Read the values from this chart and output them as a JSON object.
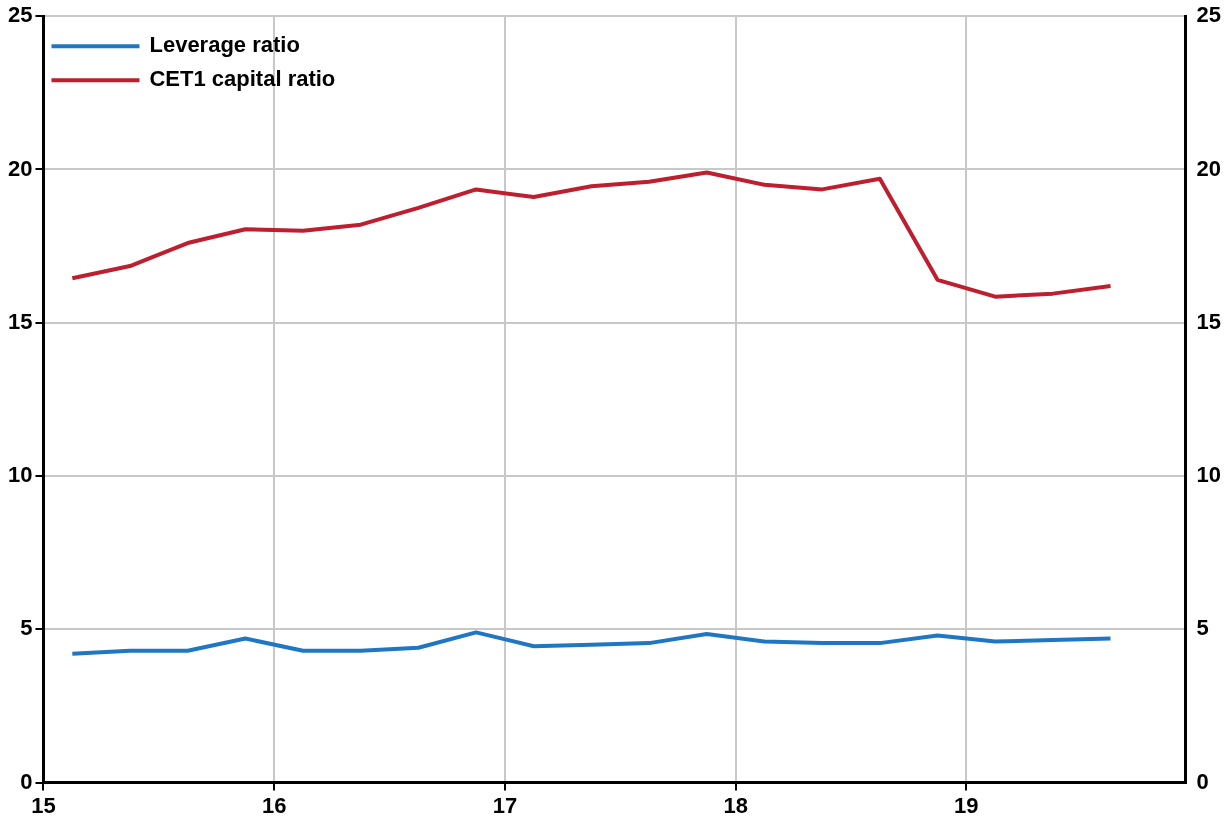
{
  "chart_data": {
    "type": "line",
    "x": [
      15.125,
      15.375,
      15.625,
      15.875,
      16.125,
      16.375,
      16.625,
      16.875,
      17.125,
      17.375,
      17.625,
      17.875,
      18.125,
      18.375,
      18.625,
      18.875,
      19.125,
      19.375,
      19.625
    ],
    "series": [
      {
        "name": "Leverage ratio",
        "color": "#1f77c4",
        "values": [
          4.2,
          4.3,
          4.3,
          4.7,
          4.3,
          4.3,
          4.4,
          4.9,
          4.45,
          4.5,
          4.55,
          4.85,
          4.6,
          4.55,
          4.55,
          4.8,
          4.6,
          4.65,
          4.7
        ]
      },
      {
        "name": "CET1 capital ratio",
        "color": "#be1e2d",
        "values": [
          16.45,
          16.85,
          17.6,
          18.05,
          18.0,
          18.2,
          18.75,
          19.35,
          19.1,
          19.45,
          19.6,
          19.9,
          19.5,
          19.35,
          19.7,
          16.4,
          15.85,
          15.95,
          16.2
        ]
      }
    ],
    "xlim": [
      15,
      19.95
    ],
    "xticks": [
      15,
      16,
      17,
      18,
      19
    ],
    "ylim": [
      0,
      25
    ],
    "yticks": [
      0,
      5,
      10,
      15,
      20,
      25
    ],
    "y2lim": [
      0,
      25
    ],
    "y2ticks": [
      0,
      5,
      10,
      15,
      20,
      25
    ],
    "grid": true,
    "legend": "top left",
    "marker": "none",
    "line_style": "solid"
  }
}
